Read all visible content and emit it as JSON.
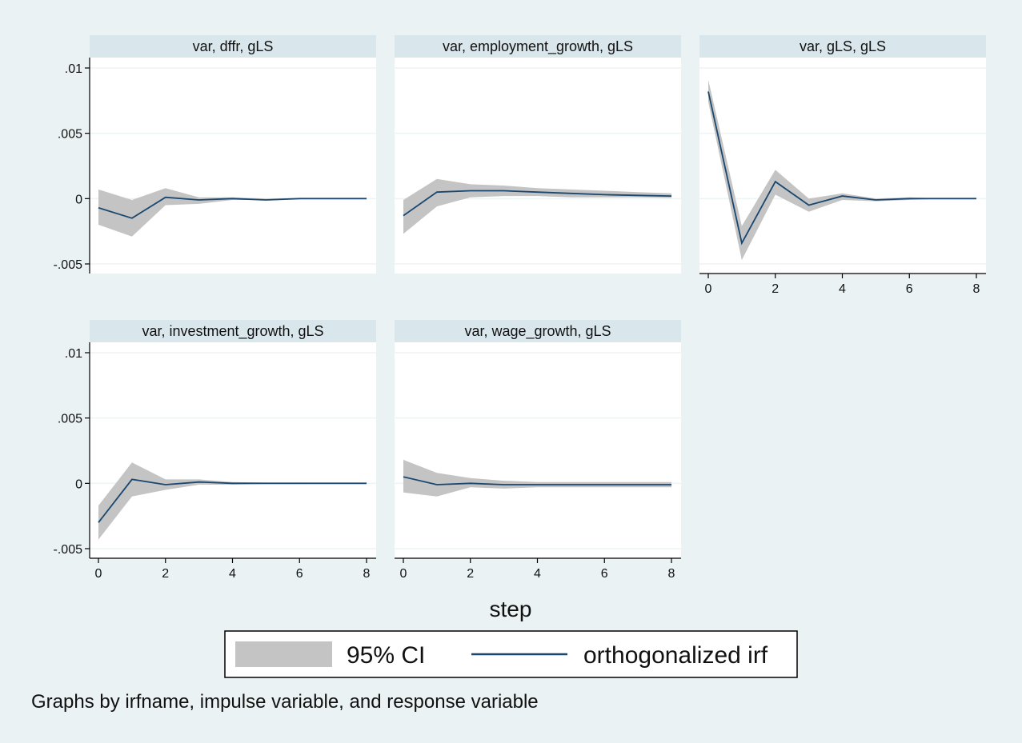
{
  "chart_data": {
    "type": "line",
    "xlabel": "step",
    "note": "Graphs by irfname, impulse variable, and response variable",
    "legend": {
      "placement": "bottom",
      "entries": [
        {
          "label": "95% CI",
          "kind": "area",
          "color": "#c4c4c4"
        },
        {
          "label": "orthogonalized irf",
          "kind": "line",
          "color": "#1a476f"
        }
      ]
    },
    "xlim": [
      0,
      8
    ],
    "ylim": [
      -0.005,
      0.01
    ],
    "x_ticks": [
      0,
      2,
      4,
      6,
      8
    ],
    "x_tick_labels": [
      "0",
      "2",
      "4",
      "6",
      "8"
    ],
    "y_ticks": [
      -0.005,
      0,
      0.005,
      0.01
    ],
    "y_tick_labels": [
      "-.005",
      "0",
      ".005",
      ".01"
    ],
    "grid": true,
    "colors": {
      "background": "#eaf2f3",
      "plot_bg": "#ffffff",
      "strip": "#d9e6eb",
      "ci": "#c4c4c4",
      "irf": "#1a476f",
      "grid": "#eef3f4"
    },
    "panels": [
      {
        "title": "var, dffr, gLS",
        "x": [
          0,
          1,
          2,
          3,
          4,
          5,
          6,
          7,
          8
        ],
        "irf": [
          -0.0007,
          -0.0015,
          0.0001,
          -0.0001,
          0.0,
          -0.0001,
          0.0,
          0.0,
          0.0
        ],
        "lower": [
          -0.002,
          -0.0029,
          -0.0005,
          -0.0004,
          -0.0001,
          -0.0001,
          -5e-05,
          0.0,
          0.0
        ],
        "upper": [
          0.0007,
          -0.0001,
          0.0008,
          0.0001,
          0.0001,
          0.0,
          5e-05,
          0.0,
          0.0
        ]
      },
      {
        "title": "var, employment_growth, gLS",
        "x": [
          0,
          1,
          2,
          3,
          4,
          5,
          6,
          7,
          8
        ],
        "irf": [
          -0.0013,
          0.0005,
          0.0006,
          0.0006,
          0.0005,
          0.0004,
          0.0003,
          0.00025,
          0.0002
        ],
        "lower": [
          -0.0027,
          -0.0006,
          0.0001,
          0.0002,
          0.0002,
          0.0001,
          0.0001,
          0.0001,
          5e-05
        ],
        "upper": [
          -0.0001,
          0.0015,
          0.0011,
          0.001,
          0.0008,
          0.0007,
          0.0006,
          0.0005,
          0.0004
        ]
      },
      {
        "title": "var, gLS, gLS",
        "x": [
          0,
          1,
          2,
          3,
          4,
          5,
          6,
          7,
          8
        ],
        "irf": [
          0.0082,
          -0.0034,
          0.0013,
          -0.0005,
          0.0002,
          -0.0001,
          0.0,
          0.0,
          0.0
        ],
        "lower": [
          0.0074,
          -0.0047,
          0.0003,
          -0.001,
          -0.0001,
          -0.0002,
          -0.0001,
          0.0,
          0.0
        ],
        "upper": [
          0.0091,
          -0.0021,
          0.0022,
          0.0,
          0.0004,
          0.0,
          0.0001,
          0.0,
          0.0
        ]
      },
      {
        "title": "var, investment_growth, gLS",
        "x": [
          0,
          1,
          2,
          3,
          4,
          5,
          6,
          7,
          8
        ],
        "irf": [
          -0.003,
          0.0003,
          -0.0001,
          0.0001,
          0.0,
          0.0,
          0.0,
          0.0,
          0.0
        ],
        "lower": [
          -0.0043,
          -0.001,
          -0.0005,
          -0.0001,
          -0.0001,
          -5e-05,
          -5e-05,
          0.0,
          0.0
        ],
        "upper": [
          -0.0017,
          0.0016,
          0.0003,
          0.0003,
          0.0001,
          5e-05,
          5e-05,
          5e-05,
          5e-05
        ]
      },
      {
        "title": "var, wage_growth, gLS",
        "x": [
          0,
          1,
          2,
          3,
          4,
          5,
          6,
          7,
          8
        ],
        "irf": [
          0.0005,
          -0.0001,
          0.0,
          -0.0001,
          -0.0001,
          -0.0001,
          -0.0001,
          -0.0001,
          -0.0001
        ],
        "lower": [
          -0.0007,
          -0.001,
          -0.0003,
          -0.0004,
          -0.0003,
          -0.0003,
          -0.0003,
          -0.0003,
          -0.0003
        ],
        "upper": [
          0.0018,
          0.0008,
          0.0004,
          0.0002,
          0.0001,
          0.0001,
          0.0001,
          0.0001,
          0.0001
        ]
      }
    ]
  }
}
